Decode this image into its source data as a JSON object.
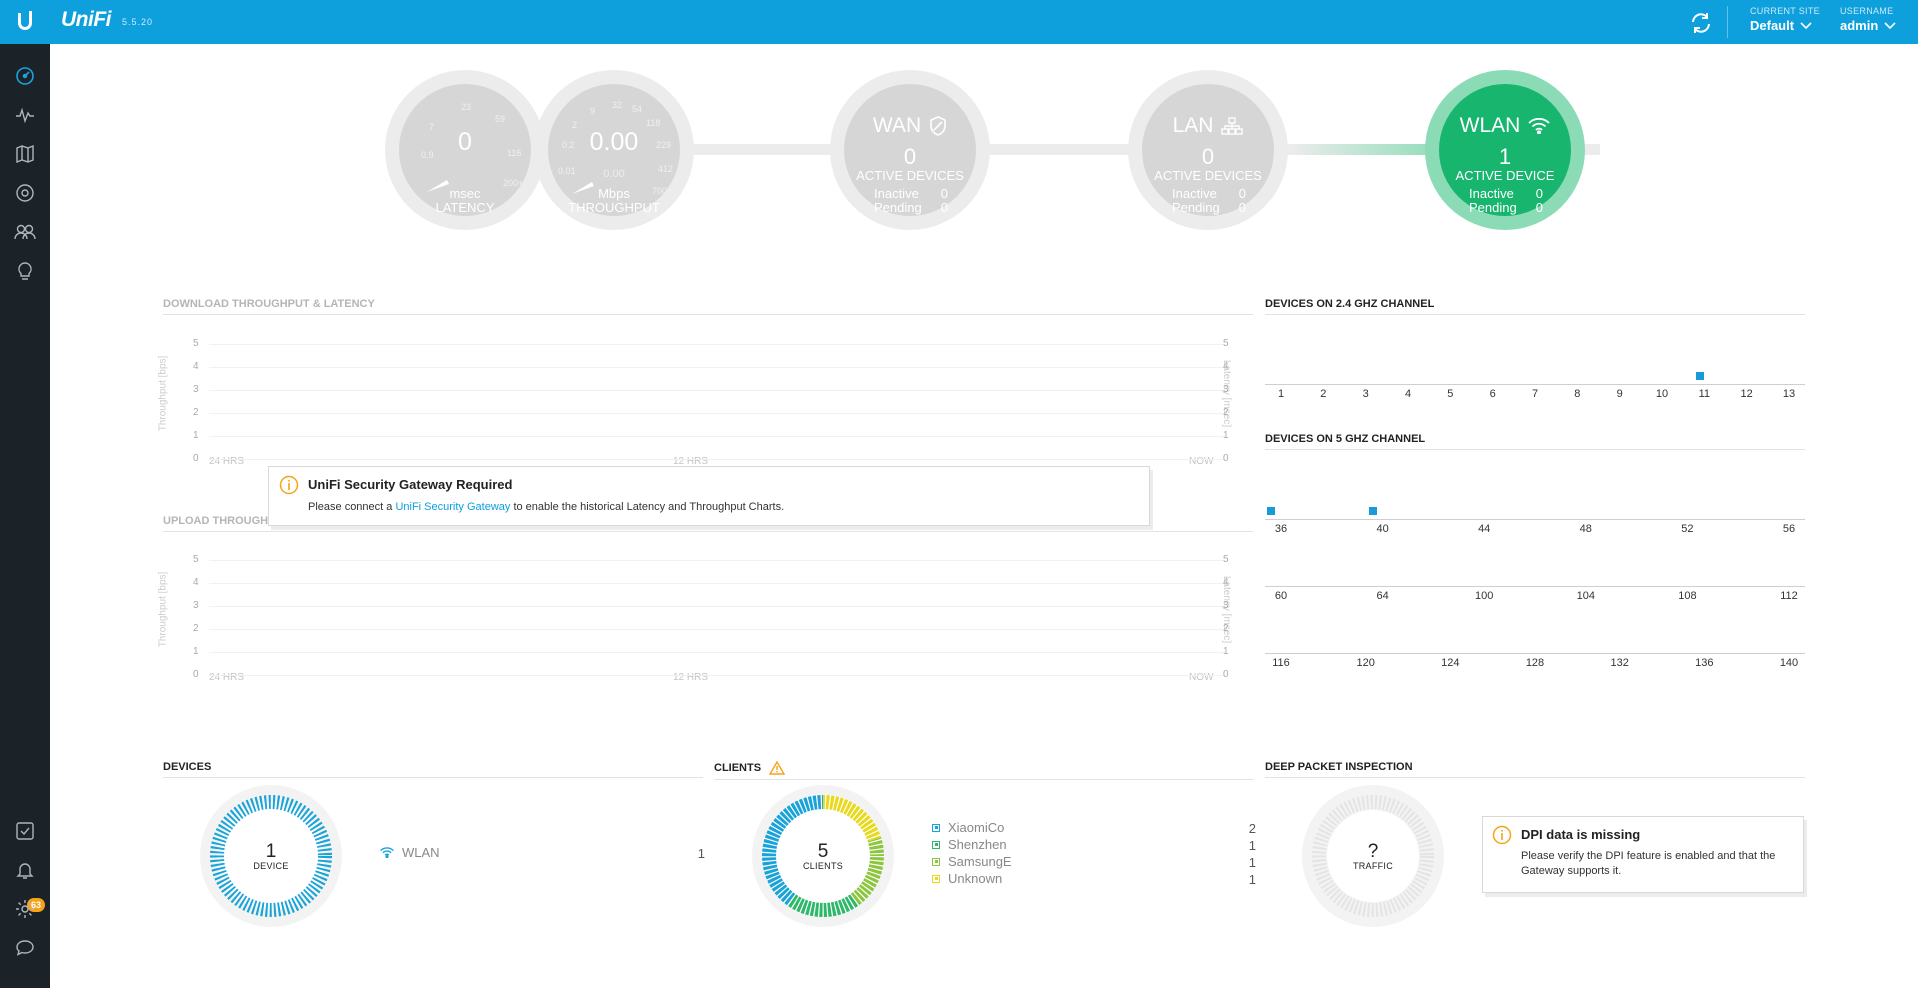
{
  "header": {
    "brand": "UniFi",
    "version": "5.5.20",
    "site_label": "CURRENT SITE",
    "site_value": "Default",
    "user_label": "USERNAME",
    "user_value": "admin"
  },
  "sidebar": {
    "items": [
      "dashboard-icon",
      "statistics-icon",
      "map-icon",
      "devices-icon",
      "clients-icon",
      "insights-icon"
    ],
    "bottom_items": [
      "tasks-icon",
      "alerts-icon",
      "settings-icon",
      "chat-icon"
    ],
    "alert_count": "63"
  },
  "topology": {
    "latency": {
      "value": "0",
      "unit": "msec",
      "label": "LATENCY",
      "ticks": [
        "0.9",
        "7",
        "23",
        "59",
        "116",
        "200+"
      ]
    },
    "throughput": {
      "value": "0.00",
      "secondary": "0.00",
      "unit": "Mbps",
      "label": "THROUGHPUT",
      "ticks": [
        "0.01",
        "0.2",
        "2",
        "9",
        "32",
        "54",
        "118",
        "229",
        "412",
        "700+"
      ]
    },
    "wan": {
      "title": "WAN",
      "count": "0",
      "active_label": "ACTIVE DEVICES",
      "inactive_label": "Inactive",
      "inactive": "0",
      "pending_label": "Pending",
      "pending": "0"
    },
    "lan": {
      "title": "LAN",
      "count": "0",
      "active_label": "ACTIVE DEVICES",
      "inactive_label": "Inactive",
      "inactive": "0",
      "pending_label": "Pending",
      "pending": "0"
    },
    "wlan": {
      "title": "WLAN",
      "count": "1",
      "active_label": "ACTIVE DEVICE",
      "inactive_label": "Inactive",
      "inactive": "0",
      "pending_label": "Pending",
      "pending": "0"
    }
  },
  "download_chart": {
    "title": "DOWNLOAD THROUGHPUT & LATENCY",
    "y_left_label": "Throughput [bps]",
    "y_right_label": "Latency [msec]",
    "y_ticks": [
      "5",
      "4",
      "3",
      "2",
      "1",
      "0"
    ],
    "x_ticks": [
      "24 HRS",
      "12 HRS",
      "NOW"
    ]
  },
  "upload_chart": {
    "title": "UPLOAD THROUGHPUT & LATENCY",
    "y_left_label": "Throughput [bps]",
    "y_right_label": "Latency [msec]",
    "y_ticks": [
      "5",
      "4",
      "3",
      "2",
      "1",
      "0"
    ],
    "x_ticks": [
      "24 HRS",
      "12 HRS",
      "NOW"
    ]
  },
  "usg_popup": {
    "title": "UniFi Security Gateway Required",
    "text_before": "Please connect a ",
    "link": "UniFi Security Gateway",
    "text_after": " to enable the historical Latency and Throughput Charts."
  },
  "channels_24": {
    "title": "DEVICES ON 2.4 GHZ CHANNEL",
    "channels": [
      "1",
      "2",
      "3",
      "4",
      "5",
      "6",
      "7",
      "8",
      "9",
      "10",
      "11",
      "12",
      "13"
    ],
    "device_channels": [
      "11"
    ]
  },
  "channels_5": {
    "title": "DEVICES ON 5 GHZ CHANNEL",
    "rows": [
      [
        "36",
        "40",
        "44",
        "48",
        "52",
        "56"
      ],
      [
        "60",
        "64",
        "100",
        "104",
        "108",
        "112"
      ],
      [
        "116",
        "120",
        "124",
        "128",
        "132",
        "136",
        "140"
      ]
    ],
    "device_channels": [
      "36",
      "40"
    ]
  },
  "devices": {
    "title": "DEVICES",
    "count": "1",
    "count_label": "DEVICE",
    "items": [
      {
        "name": "WLAN",
        "count": "1"
      }
    ]
  },
  "clients": {
    "title": "CLIENTS",
    "count": "5",
    "count_label": "CLIENTS",
    "items": [
      {
        "name": "XiaomiCo",
        "count": "2",
        "color": "#1aa3d8"
      },
      {
        "name": "Shenzhen",
        "count": "1",
        "color": "#2fb86a"
      },
      {
        "name": "SamsungE",
        "count": "1",
        "color": "#8cc63f"
      },
      {
        "name": "Unknown",
        "count": "1",
        "color": "#e8d91d"
      }
    ]
  },
  "dpi": {
    "title": "DEEP PACKET INSPECTION",
    "center": "?",
    "center_label": "TRAFFIC",
    "popup_title": "DPI data is missing",
    "popup_text": "Please verify the DPI feature is enabled and that the Gateway supports it."
  },
  "colors": {
    "header": "#0ea0dd",
    "sidebar": "#1b2228",
    "wlan_green": "#18b56f",
    "warning": "#f6a31a",
    "device_mark": "#1a9ad9"
  }
}
